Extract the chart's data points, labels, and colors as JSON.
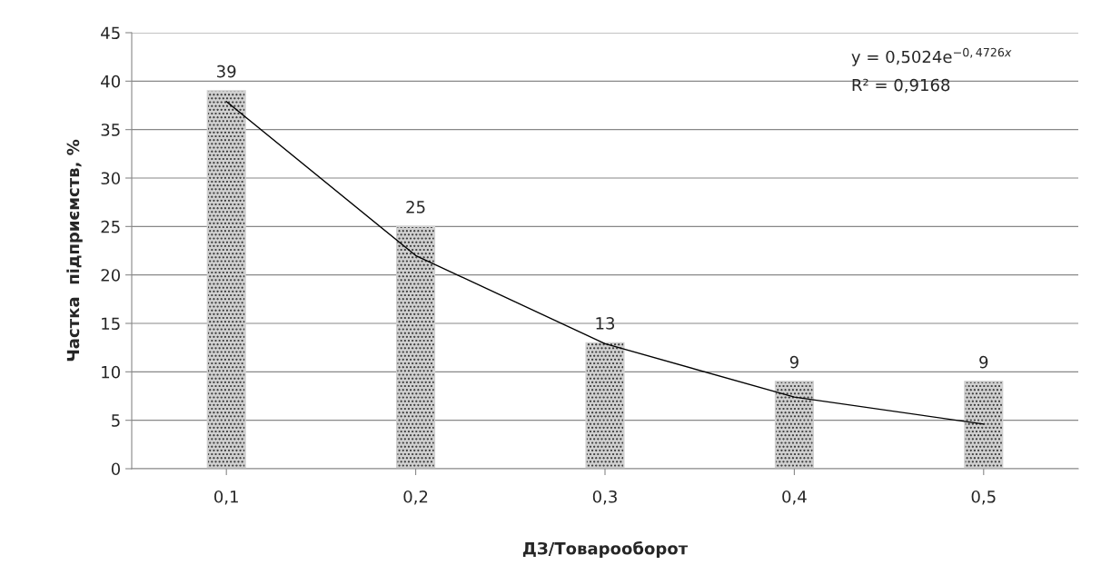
{
  "chart_data": {
    "type": "bar",
    "xlabel": "ДЗ/Товарооборот",
    "ylabel": "Частка  підприємств, %",
    "categories": [
      "0,1",
      "0,2",
      "0,3",
      "0,4",
      "0,5"
    ],
    "series": [
      {
        "type": "bar",
        "color": "#d0d0d0",
        "values": [
          39,
          25,
          13,
          9,
          9
        ],
        "value_labels": [
          "39",
          "25",
          "13",
          "9",
          "9"
        ]
      },
      {
        "type": "line",
        "color": "#000000",
        "values": [
          37.9,
          22,
          12.9,
          7.4,
          4.6
        ],
        "marker": "none",
        "line_style": "solid"
      }
    ],
    "ylim": [
      0,
      45
    ],
    "yticks": [
      0,
      5,
      10,
      15,
      20,
      25,
      30,
      35,
      40,
      45
    ],
    "grid": "y",
    "legend": false,
    "annotations": [
      "y = 0,5024e$^{−0,4726x}$",
      "R² = 0,9168"
    ]
  }
}
